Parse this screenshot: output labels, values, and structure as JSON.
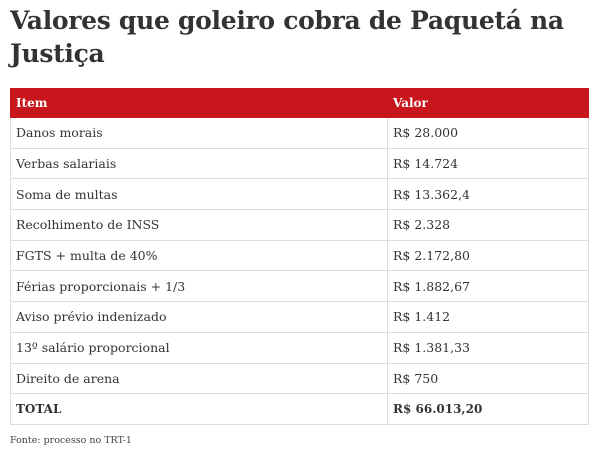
{
  "header": {
    "title": "Valores que goleiro cobra de Paquetá na Justiça"
  },
  "table": {
    "columns": [
      "Item",
      "Valor"
    ],
    "rows": [
      [
        "Danos morais",
        "R$ 28.000"
      ],
      [
        "Verbas salariais",
        "R$ 14.724"
      ],
      [
        "Soma de multas",
        "R$ 13.362,4"
      ],
      [
        "Recolhimento de INSS",
        "R$ 2.328"
      ],
      [
        "FGTS + multa de 40%",
        "R$ 2.172,80"
      ],
      [
        "Férias proporcionais + 1/3",
        "R$ 1.882,67"
      ],
      [
        "Aviso prévio indenizado",
        "R$ 1.412"
      ],
      [
        "13º salário proporcional",
        "R$ 1.381,33"
      ],
      [
        "Direito de arena",
        "R$ 750"
      ]
    ],
    "total": [
      "TOTAL",
      "R$ 66.013,20"
    ]
  },
  "footer": {
    "source": "Fonte: processo no TRT-1"
  }
}
